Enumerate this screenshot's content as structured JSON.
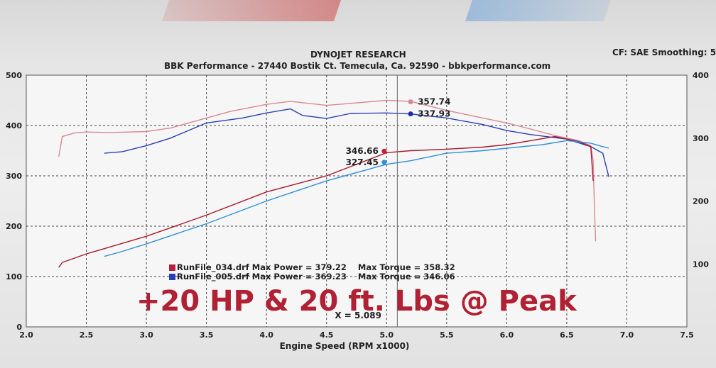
{
  "header": {
    "title": "DYNOJET RESEARCH",
    "subtitle": "BBK Performance - 27440 Bostik Ct. Temecula, Ca. 92590 - bbkperformance.com",
    "cf_label": "CF: SAE  Smoothing: 5"
  },
  "overlay_text": "+20 HP & 20 ft. Lbs @ Peak",
  "cursor_label": "X = 5.089",
  "legend": [
    {
      "name": "RunFile_034.drf Max Power = 379.22",
      "torque": "Max Torque = 358.32",
      "color": "#b3223a"
    },
    {
      "name": "RunFile_005.drf Max Power = 369.23",
      "torque": "Max Torque = 346.06",
      "color": "#2b3fb4"
    }
  ],
  "chart_data": {
    "type": "line",
    "xlabel": "Engine Speed (RPM x1000)",
    "xlim": [
      2.0,
      7.5
    ],
    "ylim": [
      0,
      500
    ],
    "ylim_right": [
      0,
      400
    ],
    "x_ticks": [
      "2.0",
      "2.5",
      "3.0",
      "3.5",
      "4.0",
      "4.5",
      "5.0",
      "5.5",
      "6.0",
      "6.5",
      "7.0",
      "7.5"
    ],
    "y_ticks_left": [
      "0",
      "100",
      "200",
      "300",
      "400",
      "500"
    ],
    "y_ticks_right": [
      "100",
      "200",
      "300",
      "400"
    ],
    "grid": true,
    "cursor_x": 5.089,
    "readouts": [
      {
        "value": "357.74",
        "x": 5.2,
        "y": 447,
        "color": "#d98892",
        "side": "right"
      },
      {
        "value": "337.93",
        "x": 5.2,
        "y": 423,
        "color": "#1f2f9a",
        "side": "right"
      },
      {
        "value": "346.66",
        "x": 4.98,
        "y": 349,
        "color": "#cc1f2f",
        "side": "left"
      },
      {
        "value": "327.45",
        "x": 4.98,
        "y": 327,
        "color": "#2f8fd8",
        "side": "left"
      }
    ],
    "series": [
      {
        "color": "#d98892",
        "x": [
          2.27,
          2.3,
          2.4,
          2.5,
          2.7,
          3.0,
          3.2,
          3.5,
          3.7,
          4.0,
          4.2,
          4.5,
          4.7,
          5.0,
          5.2,
          5.5,
          5.8,
          6.0,
          6.2,
          6.4,
          6.6,
          6.7,
          6.72,
          6.73,
          6.74
        ],
        "y": [
          338,
          378,
          385,
          387,
          386,
          388,
          395,
          415,
          428,
          442,
          448,
          440,
          444,
          450,
          448,
          430,
          415,
          405,
          393,
          380,
          370,
          360,
          330,
          240,
          170
        ]
      },
      {
        "color": "#2b3fb4",
        "x": [
          2.65,
          2.8,
          3.0,
          3.2,
          3.5,
          3.8,
          4.0,
          4.2,
          4.3,
          4.5,
          4.7,
          5.0,
          5.2,
          5.5,
          5.8,
          6.0,
          6.2,
          6.5,
          6.7,
          6.8,
          6.85
        ],
        "y": [
          345,
          348,
          360,
          375,
          405,
          415,
          425,
          433,
          420,
          414,
          424,
          425,
          423,
          415,
          402,
          390,
          382,
          373,
          358,
          345,
          298
        ]
      },
      {
        "color": "#a8192d",
        "x": [
          2.27,
          2.3,
          2.5,
          3.0,
          3.5,
          4.0,
          4.5,
          5.0,
          5.2,
          5.5,
          5.8,
          6.0,
          6.2,
          6.4,
          6.6,
          6.7,
          6.72
        ],
        "y": [
          118,
          128,
          145,
          180,
          222,
          268,
          300,
          346,
          350,
          353,
          357,
          362,
          370,
          378,
          368,
          358,
          290
        ]
      },
      {
        "color": "#2f8fd8",
        "x": [
          2.65,
          2.8,
          3.0,
          3.5,
          4.0,
          4.5,
          5.0,
          5.2,
          5.5,
          5.8,
          6.0,
          6.3,
          6.5,
          6.7,
          6.8,
          6.85
        ],
        "y": [
          140,
          150,
          165,
          205,
          250,
          290,
          323,
          330,
          345,
          350,
          355,
          362,
          370,
          365,
          358,
          355
        ]
      }
    ]
  }
}
